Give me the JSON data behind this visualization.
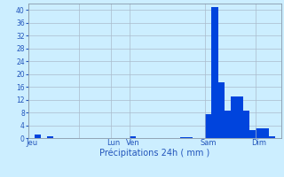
{
  "title": "",
  "xlabel": "Précipitations 24h ( mm )",
  "ylabel": "",
  "background_color": "#cceeff",
  "bar_color": "#0044dd",
  "ylim": [
    0,
    42
  ],
  "yticks": [
    0,
    4,
    8,
    12,
    16,
    20,
    24,
    28,
    32,
    36,
    40
  ],
  "bar_values": [
    0,
    1.0,
    0,
    0.5,
    0,
    0,
    0,
    0,
    0,
    0,
    0,
    0,
    0,
    0,
    0,
    0,
    0.5,
    0,
    0,
    0,
    0,
    0,
    0,
    0,
    0.3,
    0.3,
    0,
    0,
    7.5,
    41.0,
    17.5,
    8.5,
    13.0,
    13.0,
    8.5,
    2.5,
    3.0,
    3.0,
    0.5,
    0
  ],
  "n_bars": 40,
  "day_tick_positions": [
    0.5,
    8.5,
    13.5,
    16.5,
    28.5,
    36.5
  ],
  "day_tick_labels": [
    "Jeu",
    "",
    "Lun",
    "Ven",
    "Sam",
    "Dim"
  ],
  "vline_positions": [
    0,
    8,
    13,
    16,
    28,
    36,
    40
  ],
  "grid_color": "#aabbcc",
  "tick_color": "#2255bb",
  "spine_color": "#8899aa"
}
